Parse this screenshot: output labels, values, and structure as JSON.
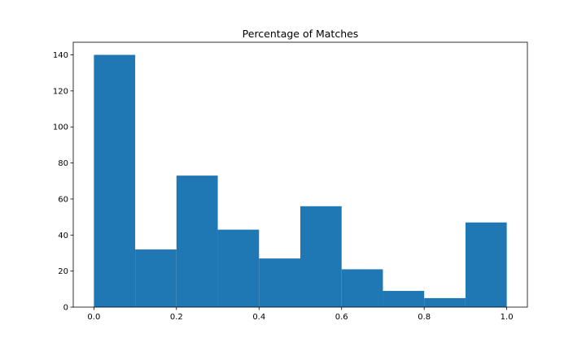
{
  "chart_data": {
    "type": "bar",
    "title": "Percentage of Matches",
    "xlabel": "",
    "ylabel": "",
    "bin_edges": [
      0.0,
      0.1,
      0.2,
      0.3,
      0.4,
      0.5,
      0.6,
      0.7,
      0.8,
      0.9,
      1.0
    ],
    "values": [
      140,
      32,
      73,
      43,
      27,
      56,
      21,
      9,
      5,
      47
    ],
    "xlim": [
      -0.05,
      1.05
    ],
    "ylim": [
      0,
      147
    ],
    "x_ticks": [
      0.0,
      0.2,
      0.4,
      0.6,
      0.8,
      1.0
    ],
    "x_tick_labels": [
      "0.0",
      "0.2",
      "0.4",
      "0.6",
      "0.8",
      "1.0"
    ],
    "y_ticks": [
      0,
      20,
      40,
      60,
      80,
      100,
      120,
      140
    ],
    "y_tick_labels": [
      "0",
      "20",
      "40",
      "60",
      "80",
      "100",
      "120",
      "140"
    ],
    "bar_color": "#1f77b4",
    "grid": false,
    "legend": "none"
  }
}
